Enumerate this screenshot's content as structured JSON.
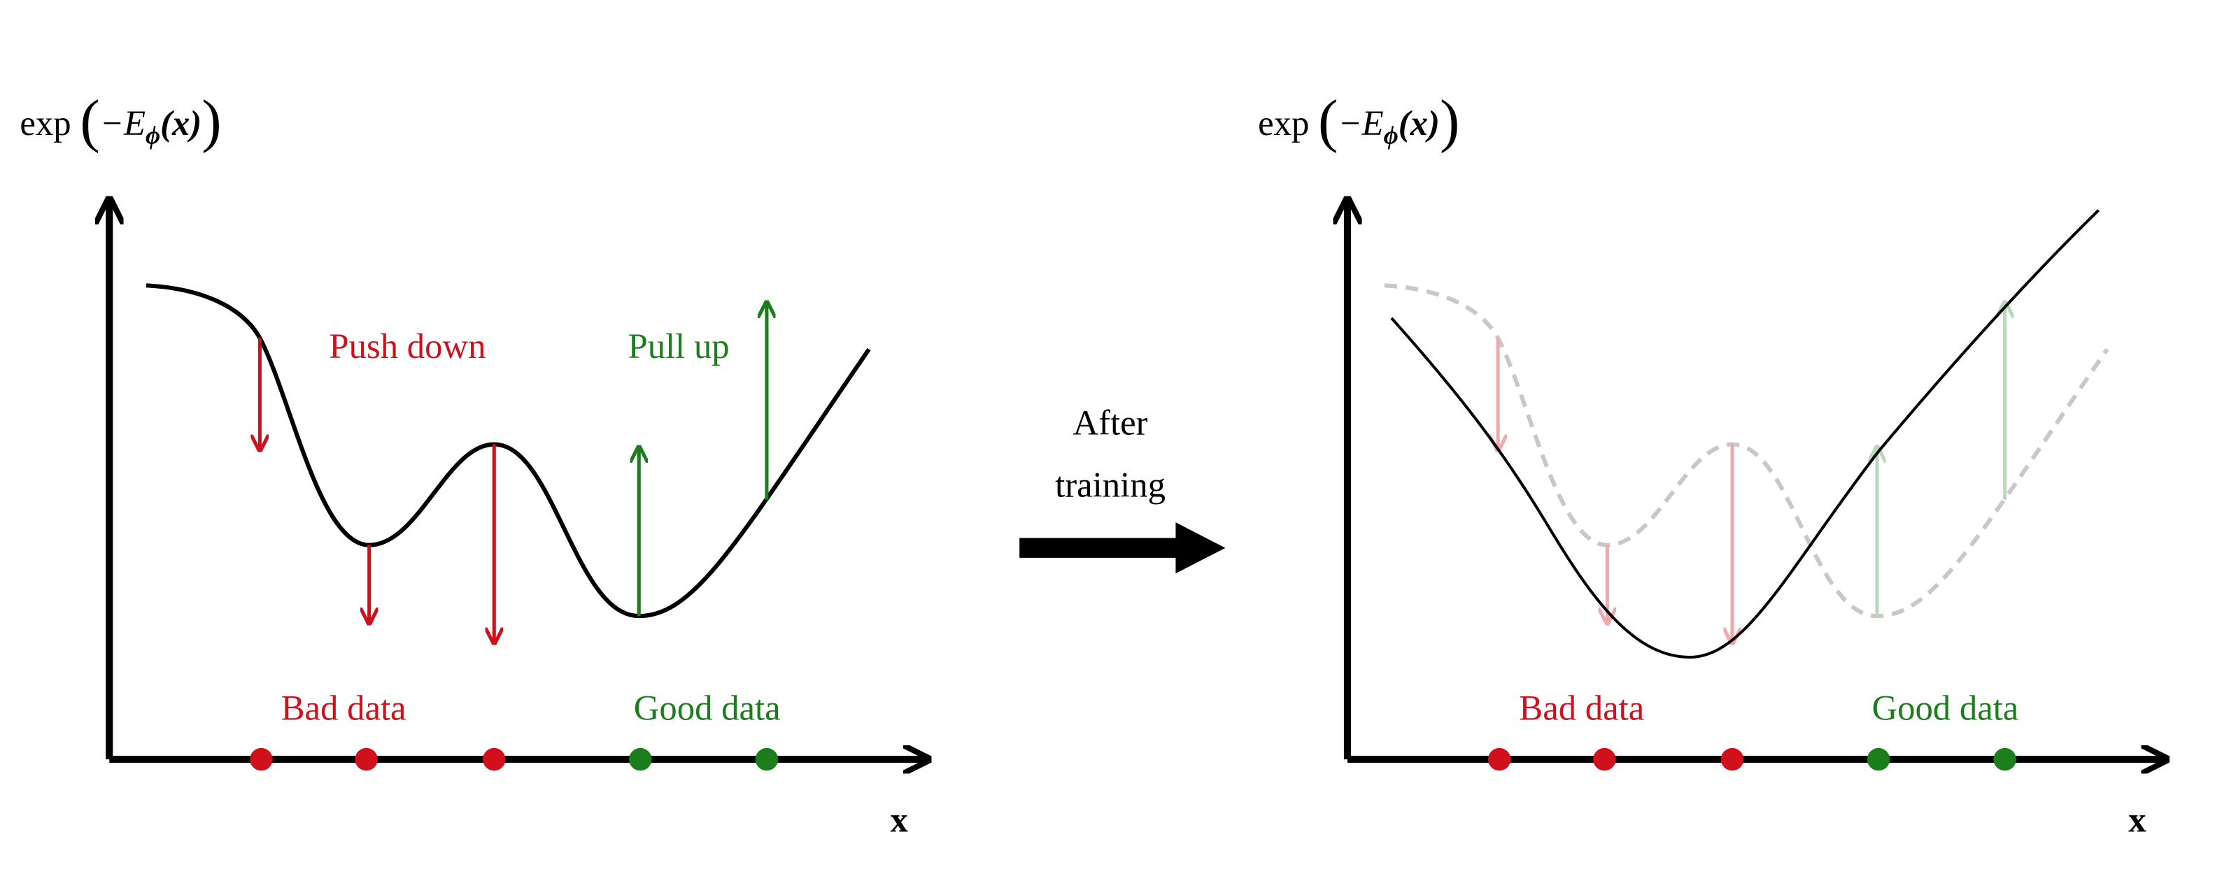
{
  "panels": [
    {
      "y_label": {
        "func": "exp",
        "open": "(",
        "minus_e": "−E",
        "sub": "ϕ",
        "arg": "(x)",
        "close": ")"
      },
      "x_label": "x",
      "push": "Push down",
      "pull": "Pull up",
      "bad": "Bad data",
      "good": "Good data"
    },
    {
      "y_label": {
        "func": "exp",
        "open": "(",
        "minus_e": "−E",
        "sub": "ϕ",
        "arg": "(x)",
        "close": ")"
      },
      "x_label": "x",
      "bad": "Bad data",
      "good": "Good data"
    }
  ],
  "transition": [
    "After",
    "training"
  ]
}
